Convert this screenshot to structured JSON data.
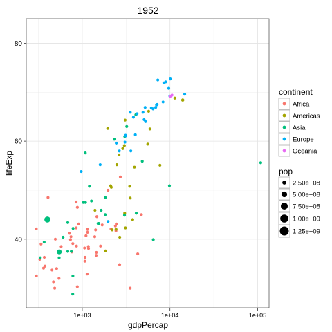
{
  "chart_data": {
    "type": "scatter",
    "title": "1952",
    "xlabel": "gdpPercap",
    "ylabel": "lifeExp",
    "x_scale": "log10",
    "xlim": [
      230,
      135000
    ],
    "ylim": [
      26,
      85
    ],
    "x_ticks": [
      1000,
      10000,
      100000
    ],
    "x_tick_labels": [
      "1e+03",
      "1e+04",
      "1e+05"
    ],
    "y_ticks": [
      40,
      60,
      80
    ],
    "y_tick_labels": [
      "40",
      "60",
      "80"
    ],
    "grid": true,
    "legend_position": "right",
    "color_legend": {
      "title": "continent",
      "entries": [
        {
          "label": "Africa",
          "color": "#F8766D"
        },
        {
          "label": "Americas",
          "color": "#A3A500"
        },
        {
          "label": "Asia",
          "color": "#00BF7D"
        },
        {
          "label": "Europe",
          "color": "#00B0F6"
        },
        {
          "label": "Oceania",
          "color": "#E76BF3"
        }
      ]
    },
    "size_legend": {
      "title": "pop",
      "entries": [
        {
          "label": "2.50e+08",
          "value": 250000000
        },
        {
          "label": "5.00e+08",
          "value": 500000000
        },
        {
          "label": "7.50e+08",
          "value": 750000000
        },
        {
          "label": "1.00e+09",
          "value": 1000000000
        },
        {
          "label": "1.25e+09",
          "value": 1250000000
        }
      ]
    },
    "series": [
      {
        "continent": "Africa",
        "color": "#F8766D",
        "points": [
          [
            2449,
            43.1,
            9300000.0
          ],
          [
            3521,
            30.0,
            4200000.0
          ],
          [
            1063,
            38.2,
            1700000.0
          ],
          [
            851,
            47.6,
            400000.0
          ],
          [
            543,
            32.0,
            4500000.0
          ],
          [
            339,
            39.0,
            2400000.0
          ],
          [
            1173,
            38.5,
            5000000.0
          ],
          [
            1071,
            35.5,
            1300000.0
          ],
          [
            1179,
            38.1,
            2700000.0
          ],
          [
            1103,
            40.7,
            150000.0
          ],
          [
            781,
            39.1,
            14100000.0
          ],
          [
            2126,
            42.1,
            850000.0
          ],
          [
            1388,
            40.5,
            3000000.0
          ],
          [
            2670,
            34.8,
            60000.0
          ],
          [
            1419,
            41.9,
            22200000.0
          ],
          [
            376,
            34.5,
            200000.0
          ],
          [
            328,
            35.9,
            1400000.0
          ],
          [
            362,
            34.1,
            20900000.0
          ],
          [
            4293,
            37.0,
            420000.0
          ],
          [
            485,
            30.0,
            280000.0
          ],
          [
            911,
            43.1,
            5600000.0
          ],
          [
            510,
            34.0,
            2700000.0
          ],
          [
            300,
            32.5,
            580000.0
          ],
          [
            853,
            42.3,
            6500000.0
          ],
          [
            299,
            42.1,
            750000.0
          ],
          [
            575,
            38.5,
            860000.0
          ],
          [
            2388,
            42.7,
            1000000.0
          ],
          [
            1443,
            36.7,
            4800000.0
          ],
          [
            369,
            36.3,
            2900000.0
          ],
          [
            452,
            33.7,
            3800000.0
          ],
          [
            744,
            40.5,
            1000000.0
          ],
          [
            1967,
            50.0,
            520000.0
          ],
          [
            1688,
            42.9,
            9900000.0
          ],
          [
            469,
            31.3,
            6500000.0
          ],
          [
            2424,
            41.7,
            490000.0
          ],
          [
            761,
            37.4,
            3400000.0
          ],
          [
            1077,
            36.3,
            33100000.0
          ],
          [
            2719,
            52.7,
            260000.0
          ],
          [
            493,
            40.0,
            2500000.0
          ],
          [
            880,
            46.5,
            60000.0
          ],
          [
            1450,
            37.3,
            2800000.0
          ],
          [
            879,
            30.3,
            2100000.0
          ],
          [
            1136,
            32.9,
            2500000.0
          ],
          [
            4725,
            45.0,
            14300000.0
          ],
          [
            1615,
            38.6,
            8500000.0
          ],
          [
            1148,
            41.4,
            290000.0
          ],
          [
            716,
            41.2,
            8300000.0
          ],
          [
            860,
            38.6,
            1200000.0
          ],
          [
            1468,
            44.6,
            3600000.0
          ],
          [
            734,
            39.9,
            5800000.0
          ],
          [
            1147,
            42.0,
            2700000.0
          ],
          [
            407,
            48.5,
            3100000.0
          ]
        ]
      },
      {
        "continent": "Americas",
        "color": "#A3A500",
        "points": [
          [
            5911,
            62.5,
            17900000.0
          ],
          [
            2677,
            40.4,
            2900000.0
          ],
          [
            2109,
            50.9,
            56600000.0
          ],
          [
            11367,
            68.8,
            14800000.0
          ],
          [
            3940,
            54.7,
            6400000.0
          ],
          [
            2144,
            50.6,
            12400000.0
          ],
          [
            2627,
            57.2,
            930000.0
          ],
          [
            5587,
            59.4,
            6000000.0
          ],
          [
            1398,
            45.9,
            2500000.0
          ],
          [
            3522,
            48.4,
            3500000.0
          ],
          [
            3048,
            45.3,
            2000000.0
          ],
          [
            2428,
            42.0,
            3100000.0
          ],
          [
            1840,
            37.6,
            3200000.0
          ],
          [
            2194,
            41.9,
            1500000.0
          ],
          [
            2898,
            58.5,
            1400000.0
          ],
          [
            3478,
            50.8,
            30100000.0
          ],
          [
            3112,
            42.3,
            1200000.0
          ],
          [
            2480,
            55.2,
            940000.0
          ],
          [
            1952,
            62.6,
            1600000.0
          ],
          [
            3759,
            44.0,
            8000000.0
          ],
          [
            3082,
            64.3,
            2200000.0
          ],
          [
            3023,
            59.1,
            660000.0
          ],
          [
            13990,
            68.4,
            157600000.0
          ],
          [
            5717,
            66.1,
            2300000.0
          ],
          [
            7690,
            55.1,
            5400000.0
          ]
        ]
      },
      {
        "continent": "Asia",
        "color": "#00BF7D",
        "points": [
          [
            779,
            28.8,
            8400000.0
          ],
          [
            9867,
            50.9,
            120000.0
          ],
          [
            684,
            37.5,
            46900000.0
          ],
          [
            368,
            39.4,
            4700000.0
          ],
          [
            400,
            44.0,
            556300000.0
          ],
          [
            3054,
            60.96,
            2100000.0
          ],
          [
            547,
            37.4,
            372000000.0
          ],
          [
            750,
            37.5,
            82100000.0
          ],
          [
            3035,
            44.9,
            17300000.0
          ],
          [
            4130,
            45.3,
            5400000.0
          ],
          [
            4087,
            65.4,
            1600000.0
          ],
          [
            3217,
            63.0,
            86500000.0
          ],
          [
            1547,
            43.2,
            600000.0
          ],
          [
            1089,
            47.5,
            8900000.0
          ],
          [
            1031,
            47.5,
            20900000.0
          ],
          [
            108382,
            55.6,
            160000.0
          ],
          [
            4835,
            55.9,
            1400000.0
          ],
          [
            1831,
            48.5,
            6700000.0
          ],
          [
            786,
            42.2,
            800000.0
          ],
          [
            332,
            36.2,
            20100000.0
          ],
          [
            545,
            36.2,
            9200000.0
          ],
          [
            1829,
            45.0,
            510000.0
          ],
          [
            684,
            43.4,
            41300000.0
          ],
          [
            1273,
            47.8,
            22400000.0
          ],
          [
            6460,
            39.9,
            4000000.0
          ],
          [
            2315,
            60.4,
            1100000.0
          ],
          [
            1083,
            57.6,
            7980000.0
          ],
          [
            1644,
            45.9,
            3700000.0
          ],
          [
            1207,
            50.8,
            8400000.0
          ],
          [
            605,
            40.4,
            26200000.0
          ],
          [
            1516,
            43.2,
            1000000.0
          ],
          [
            782,
            32.5,
            4960000.0
          ]
        ]
      },
      {
        "continent": "Europe",
        "color": "#00B0F6",
        "points": [
          [
            1601,
            55.2,
            1300000.0
          ],
          [
            6137,
            66.8,
            6900000.0
          ],
          [
            8343,
            68.0,
            8700000.0
          ],
          [
            973,
            53.8,
            2800000.0
          ],
          [
            2444,
            59.6,
            7300000.0
          ],
          [
            3120,
            61.2,
            3900000.0
          ],
          [
            6876,
            66.9,
            9100000.0
          ],
          [
            9692,
            70.8,
            4300000.0
          ],
          [
            6424,
            66.6,
            4100000.0
          ],
          [
            7030,
            67.4,
            42500000.0
          ],
          [
            7144,
            67.5,
            69100000.0
          ],
          [
            3531,
            65.9,
            7700000.0
          ],
          [
            5264,
            64.0,
            9500000.0
          ],
          [
            7268,
            72.5,
            150000.0
          ],
          [
            5211,
            66.9,
            2950000.0
          ],
          [
            4931,
            65.9,
            47700000.0
          ],
          [
            2648,
            58.0,
            400000.0
          ],
          [
            8942,
            72.1,
            10400000.0
          ],
          [
            10095,
            72.7,
            3300000.0
          ],
          [
            4029,
            61.3,
            25700000.0
          ],
          [
            3068,
            59.8,
            8500000.0
          ],
          [
            3145,
            61.1,
            16600000.0
          ],
          [
            3581,
            58.0,
            6900000.0
          ],
          [
            5074,
            64.4,
            3600000.0
          ],
          [
            4215,
            65.6,
            1500000.0
          ],
          [
            3834,
            64.9,
            28500000.0
          ],
          [
            8528,
            71.9,
            7100000.0
          ],
          [
            14734,
            69.6,
            4800000.0
          ],
          [
            1969,
            43.6,
            22200000.0
          ],
          [
            9980,
            69.2,
            50400000.0
          ]
        ]
      },
      {
        "continent": "Oceania",
        "color": "#E76BF3",
        "points": [
          [
            10040,
            69.1,
            8700000.0
          ],
          [
            10557,
            69.4,
            1990000.0
          ]
        ]
      }
    ]
  }
}
